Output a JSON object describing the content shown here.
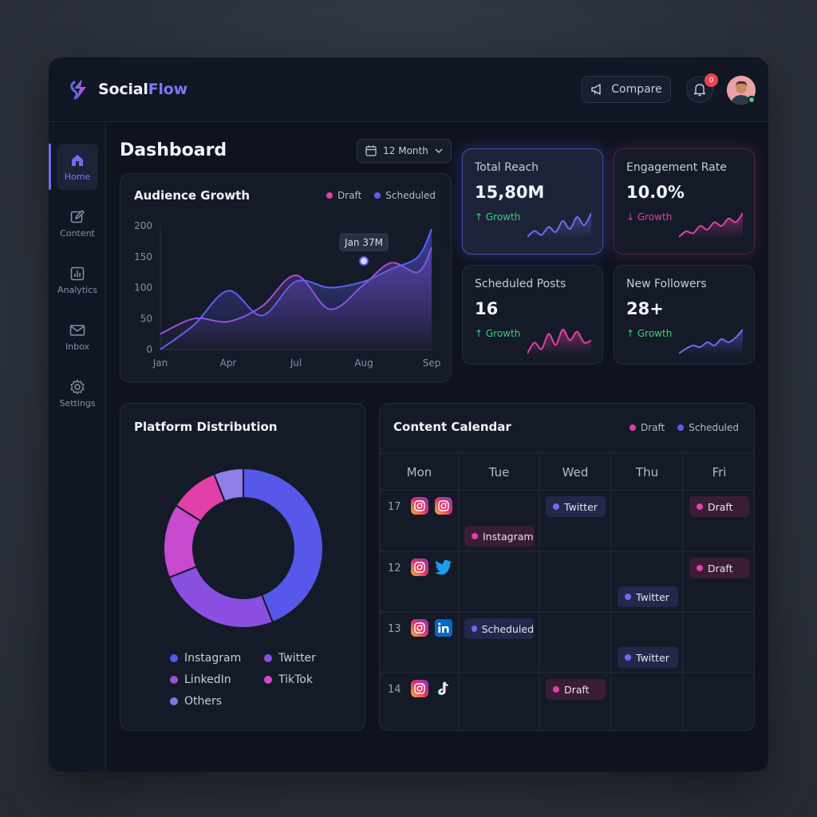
{
  "app": {
    "name_a": "Social",
    "name_b": "Flow"
  },
  "header": {
    "compare_label": "Compare",
    "notification_count": "0"
  },
  "sidebar": {
    "items": [
      {
        "label": "Home",
        "icon": "home-icon",
        "active": true
      },
      {
        "label": "Content",
        "icon": "edit-icon"
      },
      {
        "label": "Analytics",
        "icon": "chart-icon"
      },
      {
        "label": "Inbox",
        "icon": "mail-icon"
      },
      {
        "label": "Settings",
        "icon": "gear-icon"
      }
    ]
  },
  "page": {
    "title": "Dashboard",
    "period": "12 Month"
  },
  "colors": {
    "accent": "#6f6cf0",
    "draft": "#e040a8",
    "scheduled": "#5a5ef0",
    "growth_up": "#3fd07a",
    "growth_down": "#e0409a"
  },
  "audience": {
    "title": "Audience Growth",
    "legend": [
      "Draft",
      "Scheduled"
    ],
    "tooltip": "Jan 37M",
    "chart_data": {
      "type": "area",
      "categories": [
        "Jan",
        "Apr",
        "Jul",
        "Aug",
        "Sep"
      ],
      "y_ticks": [
        "200",
        "150",
        "100",
        "50",
        "0"
      ],
      "ylim": [
        0,
        200
      ],
      "series": [
        {
          "name": "Draft",
          "x": [
            0,
            0.5,
            1,
            1.5,
            2,
            2.5,
            3,
            3.4,
            3.8,
            4
          ],
          "values": [
            25,
            50,
            45,
            70,
            120,
            65,
            105,
            140,
            125,
            165
          ]
        },
        {
          "name": "Scheduled",
          "x": [
            0,
            0.5,
            1,
            1.5,
            2,
            2.5,
            3,
            3.4,
            3.8,
            4
          ],
          "values": [
            0,
            40,
            95,
            55,
            110,
            100,
            110,
            130,
            150,
            195
          ]
        }
      ],
      "highlight": {
        "x": 3,
        "y": 143
      }
    }
  },
  "stats": [
    {
      "label": "Total Reach",
      "value": "15,80M",
      "delta": "↑ Growth",
      "trend": "up",
      "spark": [
        10,
        16,
        12,
        20,
        15,
        26,
        18,
        30,
        22,
        34
      ]
    },
    {
      "label": "Engagement Rate",
      "value": "10.0%",
      "delta": "↓ Growth",
      "trend": "down",
      "spark": [
        6,
        12,
        10,
        18,
        14,
        22,
        18,
        26,
        22,
        32
      ]
    },
    {
      "label": "Scheduled Posts",
      "value": "16",
      "delta": "↑ Growth",
      "trend": "up",
      "spark": [
        8,
        18,
        12,
        26,
        16,
        30,
        20,
        28,
        18,
        20
      ]
    },
    {
      "label": "New Followers",
      "value": "28+",
      "delta": "↑ Growth",
      "trend": "up",
      "spark": [
        4,
        10,
        14,
        12,
        18,
        14,
        22,
        18,
        24,
        34
      ]
    }
  ],
  "platform": {
    "title": "Platform Distribution",
    "chart_data": {
      "type": "pie",
      "labels": [
        "Instagram",
        "Twitter",
        "LinkedIn",
        "TikTok",
        "Others"
      ],
      "values": [
        44,
        25,
        15,
        10,
        6
      ],
      "colors": [
        "#5558e8",
        "#8a4fe0",
        "#c74ad0",
        "#e040a8",
        "#8f7ee8"
      ]
    },
    "legend": [
      {
        "label": "Instagram",
        "color": "#5558e8"
      },
      {
        "label": "Twitter",
        "color": "#8a4fe0"
      },
      {
        "label": "LinkedIn",
        "color": "#9a50d8"
      },
      {
        "label": "TikTok",
        "color": "#d04ac8"
      },
      {
        "label": "Others",
        "color": "#7a78e0"
      }
    ]
  },
  "calendar": {
    "title": "Content Calendar",
    "legend": [
      "Draft",
      "Scheduled"
    ],
    "days": [
      "Mon",
      "Tue",
      "Wed",
      "Thu",
      "Fri"
    ],
    "rows": [
      {
        "date": "17",
        "platforms": [
          "instagram-icon",
          "instagram-icon"
        ]
      },
      {
        "date": "12",
        "platforms": [
          "instagram-icon",
          "twitter-icon"
        ]
      },
      {
        "date": "13",
        "platforms": [
          "instagram-icon",
          "linkedin-icon"
        ]
      },
      {
        "date": "14",
        "platforms": [
          "instagram-icon",
          "tiktok-icon"
        ]
      }
    ],
    "events": [
      {
        "label": "Twitter",
        "kind": "sched"
      },
      {
        "label": "Draft",
        "kind": "draft"
      },
      {
        "label": "Instagram",
        "kind": "draft"
      },
      {
        "label": "Draft",
        "kind": "draft"
      },
      {
        "label": "Twitter",
        "kind": "sched"
      },
      {
        "label": "Scheduled",
        "kind": "sched"
      },
      {
        "label": "Twitter",
        "kind": "sched"
      },
      {
        "label": "Draft",
        "kind": "draft"
      }
    ]
  }
}
